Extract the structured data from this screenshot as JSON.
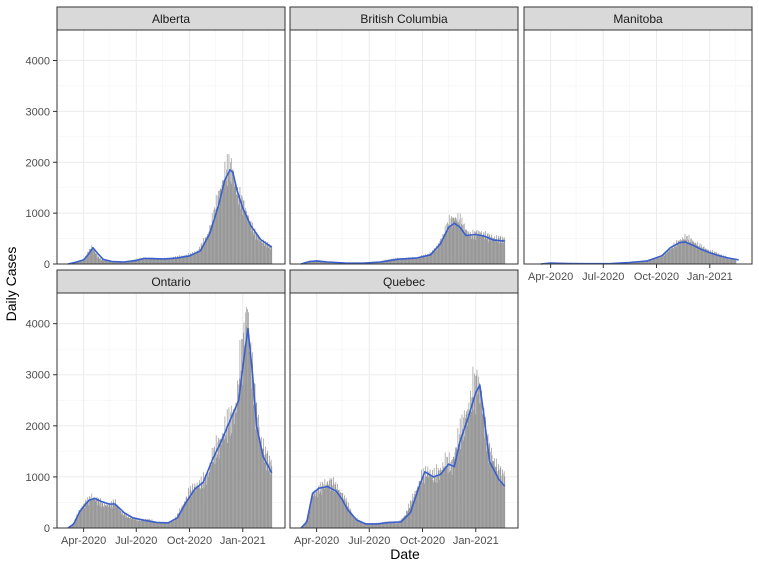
{
  "chart_data": {
    "type": "bar",
    "xlabel": "Date",
    "ylabel": "Daily Cases",
    "ylim": [
      0,
      4600
    ],
    "y_ticks": [
      0,
      1000,
      2000,
      3000,
      4000
    ],
    "xlim": [
      "2020-02-15",
      "2021-03-15"
    ],
    "x_ticks": [
      {
        "date": "2020-04-01",
        "label": "Apr-2020"
      },
      {
        "date": "2020-07-01",
        "label": "Jul-2020"
      },
      {
        "date": "2020-10-01",
        "label": "Oct-2020"
      },
      {
        "date": "2021-01-01",
        "label": "Jan-2021"
      }
    ],
    "grid": true,
    "colors": {
      "bars": "#999999",
      "smooth": "#3a5fcd",
      "strip": "#d9d9d9",
      "panel_border": "#333333",
      "grid": "#ebebeb"
    },
    "panels": [
      {
        "name": "Alberta",
        "bars": [
          [
            "2020-03-05",
            0
          ],
          [
            "2020-03-20",
            50
          ],
          [
            "2020-03-31",
            80
          ],
          [
            "2020-04-05",
            150
          ],
          [
            "2020-04-10",
            250
          ],
          [
            "2020-04-15",
            330
          ],
          [
            "2020-04-20",
            250
          ],
          [
            "2020-04-25",
            150
          ],
          [
            "2020-05-01",
            90
          ],
          [
            "2020-05-15",
            50
          ],
          [
            "2020-06-01",
            40
          ],
          [
            "2020-06-15",
            50
          ],
          [
            "2020-07-01",
            90
          ],
          [
            "2020-07-15",
            120
          ],
          [
            "2020-08-01",
            110
          ],
          [
            "2020-08-15",
            100
          ],
          [
            "2020-09-01",
            120
          ],
          [
            "2020-09-15",
            150
          ],
          [
            "2020-10-01",
            180
          ],
          [
            "2020-10-15",
            250
          ],
          [
            "2020-11-01",
            550
          ],
          [
            "2020-11-10",
            900
          ],
          [
            "2020-11-20",
            1300
          ],
          [
            "2020-12-01",
            1750
          ],
          [
            "2020-12-05",
            1850
          ],
          [
            "2020-12-10",
            1900
          ],
          [
            "2020-12-15",
            1800
          ],
          [
            "2020-12-20",
            1500
          ],
          [
            "2020-12-25",
            1300
          ],
          [
            "2021-01-01",
            1200
          ],
          [
            "2021-01-10",
            900
          ],
          [
            "2021-01-20",
            650
          ],
          [
            "2021-02-01",
            450
          ],
          [
            "2021-02-10",
            400
          ],
          [
            "2021-02-20",
            330
          ]
        ],
        "smooth": [
          [
            "2020-03-05",
            0
          ],
          [
            "2020-03-20",
            40
          ],
          [
            "2020-04-01",
            80
          ],
          [
            "2020-04-10",
            200
          ],
          [
            "2020-04-17",
            320
          ],
          [
            "2020-04-25",
            210
          ],
          [
            "2020-05-05",
            90
          ],
          [
            "2020-05-20",
            50
          ],
          [
            "2020-06-10",
            40
          ],
          [
            "2020-07-01",
            70
          ],
          [
            "2020-07-15",
            110
          ],
          [
            "2020-08-01",
            105
          ],
          [
            "2020-08-20",
            100
          ],
          [
            "2020-09-10",
            120
          ],
          [
            "2020-10-01",
            160
          ],
          [
            "2020-10-20",
            260
          ],
          [
            "2020-11-05",
            600
          ],
          [
            "2020-11-20",
            1150
          ],
          [
            "2020-12-01",
            1650
          ],
          [
            "2020-12-10",
            1850
          ],
          [
            "2020-12-15",
            1800
          ],
          [
            "2020-12-22",
            1450
          ],
          [
            "2021-01-01",
            1100
          ],
          [
            "2021-01-15",
            750
          ],
          [
            "2021-02-01",
            480
          ],
          [
            "2021-02-20",
            330
          ]
        ]
      },
      {
        "name": "British Columbia",
        "bars": [
          [
            "2020-03-05",
            0
          ],
          [
            "2020-03-20",
            60
          ],
          [
            "2020-04-01",
            70
          ],
          [
            "2020-04-15",
            50
          ],
          [
            "2020-05-01",
            30
          ],
          [
            "2020-06-01",
            15
          ],
          [
            "2020-07-01",
            25
          ],
          [
            "2020-07-20",
            50
          ],
          [
            "2020-08-10",
            100
          ],
          [
            "2020-09-01",
            110
          ],
          [
            "2020-09-20",
            120
          ],
          [
            "2020-10-10",
            180
          ],
          [
            "2020-10-25",
            300
          ],
          [
            "2020-11-05",
            550
          ],
          [
            "2020-11-15",
            800
          ],
          [
            "2020-11-25",
            900
          ],
          [
            "2020-12-05",
            850
          ],
          [
            "2020-12-15",
            650
          ],
          [
            "2020-12-25",
            550
          ],
          [
            "2021-01-05",
            620
          ],
          [
            "2021-01-20",
            550
          ],
          [
            "2021-02-05",
            500
          ],
          [
            "2021-02-20",
            480
          ]
        ],
        "smooth": [
          [
            "2020-03-05",
            0
          ],
          [
            "2020-03-20",
            50
          ],
          [
            "2020-04-01",
            60
          ],
          [
            "2020-04-20",
            40
          ],
          [
            "2020-05-20",
            20
          ],
          [
            "2020-06-20",
            15
          ],
          [
            "2020-07-20",
            40
          ],
          [
            "2020-08-20",
            95
          ],
          [
            "2020-09-20",
            115
          ],
          [
            "2020-10-15",
            180
          ],
          [
            "2020-11-01",
            400
          ],
          [
            "2020-11-15",
            720
          ],
          [
            "2020-11-25",
            800
          ],
          [
            "2020-12-05",
            720
          ],
          [
            "2020-12-15",
            560
          ],
          [
            "2021-01-01",
            580
          ],
          [
            "2021-01-15",
            550
          ],
          [
            "2021-02-01",
            470
          ],
          [
            "2021-02-20",
            450
          ]
        ]
      },
      {
        "name": "Manitoba",
        "bars": [
          [
            "2020-03-15",
            0
          ],
          [
            "2020-04-01",
            30
          ],
          [
            "2020-05-01",
            10
          ],
          [
            "2020-06-01",
            5
          ],
          [
            "2020-07-01",
            5
          ],
          [
            "2020-08-01",
            20
          ],
          [
            "2020-09-01",
            40
          ],
          [
            "2020-09-20",
            80
          ],
          [
            "2020-10-10",
            150
          ],
          [
            "2020-10-25",
            300
          ],
          [
            "2020-11-10",
            450
          ],
          [
            "2020-11-20",
            520
          ],
          [
            "2020-12-01",
            450
          ],
          [
            "2020-12-15",
            350
          ],
          [
            "2021-01-01",
            250
          ],
          [
            "2021-01-15",
            200
          ],
          [
            "2021-02-01",
            120
          ],
          [
            "2021-02-15",
            80
          ]
        ],
        "smooth": [
          [
            "2020-03-15",
            0
          ],
          [
            "2020-04-01",
            20
          ],
          [
            "2020-05-01",
            10
          ],
          [
            "2020-06-01",
            5
          ],
          [
            "2020-07-15",
            10
          ],
          [
            "2020-08-15",
            30
          ],
          [
            "2020-09-15",
            60
          ],
          [
            "2020-10-10",
            160
          ],
          [
            "2020-10-25",
            320
          ],
          [
            "2020-11-10",
            420
          ],
          [
            "2020-11-20",
            430
          ],
          [
            "2020-12-01",
            380
          ],
          [
            "2020-12-15",
            300
          ],
          [
            "2021-01-01",
            220
          ],
          [
            "2021-01-15",
            170
          ],
          [
            "2021-02-01",
            120
          ],
          [
            "2021-02-20",
            80
          ]
        ]
      },
      {
        "name": "Ontario",
        "bars": [
          [
            "2020-03-05",
            0
          ],
          [
            "2020-03-15",
            100
          ],
          [
            "2020-03-25",
            350
          ],
          [
            "2020-04-05",
            500
          ],
          [
            "2020-04-15",
            600
          ],
          [
            "2020-04-25",
            550
          ],
          [
            "2020-05-05",
            450
          ],
          [
            "2020-05-15",
            450
          ],
          [
            "2020-05-25",
            500
          ],
          [
            "2020-06-05",
            300
          ],
          [
            "2020-06-20",
            200
          ],
          [
            "2020-07-05",
            150
          ],
          [
            "2020-07-20",
            170
          ],
          [
            "2020-08-05",
            110
          ],
          [
            "2020-08-20",
            100
          ],
          [
            "2020-09-05",
            150
          ],
          [
            "2020-09-20",
            450
          ],
          [
            "2020-10-01",
            700
          ],
          [
            "2020-10-10",
            800
          ],
          [
            "2020-10-20",
            850
          ],
          [
            "2020-11-01",
            1000
          ],
          [
            "2020-11-10",
            1400
          ],
          [
            "2020-11-20",
            1600
          ],
          [
            "2020-12-01",
            1900
          ],
          [
            "2020-12-10",
            2100
          ],
          [
            "2020-12-20",
            2300
          ],
          [
            "2020-12-28",
            3200
          ],
          [
            "2021-01-05",
            3800
          ],
          [
            "2021-01-08",
            4300
          ],
          [
            "2021-01-15",
            3300
          ],
          [
            "2021-01-22",
            2500
          ],
          [
            "2021-02-01",
            1700
          ],
          [
            "2021-02-10",
            1400
          ],
          [
            "2021-02-20",
            1200
          ]
        ],
        "smooth": [
          [
            "2020-03-05",
            0
          ],
          [
            "2020-03-15",
            80
          ],
          [
            "2020-03-25",
            320
          ],
          [
            "2020-04-10",
            540
          ],
          [
            "2020-04-20",
            580
          ],
          [
            "2020-05-01",
            520
          ],
          [
            "2020-05-15",
            470
          ],
          [
            "2020-05-25",
            470
          ],
          [
            "2020-06-10",
            300
          ],
          [
            "2020-06-25",
            200
          ],
          [
            "2020-07-15",
            150
          ],
          [
            "2020-08-05",
            110
          ],
          [
            "2020-08-25",
            100
          ],
          [
            "2020-09-10",
            200
          ],
          [
            "2020-09-25",
            500
          ],
          [
            "2020-10-10",
            760
          ],
          [
            "2020-10-25",
            900
          ],
          [
            "2020-11-10",
            1350
          ],
          [
            "2020-11-25",
            1700
          ],
          [
            "2020-12-10",
            2100
          ],
          [
            "2020-12-25",
            2500
          ],
          [
            "2021-01-05",
            3500
          ],
          [
            "2021-01-10",
            3900
          ],
          [
            "2021-01-18",
            3000
          ],
          [
            "2021-01-25",
            2000
          ],
          [
            "2021-02-05",
            1400
          ],
          [
            "2021-02-20",
            1080
          ]
        ]
      },
      {
        "name": "Quebec",
        "bars": [
          [
            "2020-03-05",
            0
          ],
          [
            "2020-03-15",
            150
          ],
          [
            "2020-03-25",
            650
          ],
          [
            "2020-04-05",
            750
          ],
          [
            "2020-04-15",
            850
          ],
          [
            "2020-04-25",
            900
          ],
          [
            "2020-05-05",
            800
          ],
          [
            "2020-05-15",
            650
          ],
          [
            "2020-05-25",
            450
          ],
          [
            "2020-06-05",
            200
          ],
          [
            "2020-06-20",
            100
          ],
          [
            "2020-07-05",
            80
          ],
          [
            "2020-07-20",
            100
          ],
          [
            "2020-08-05",
            120
          ],
          [
            "2020-08-20",
            100
          ],
          [
            "2020-09-01",
            250
          ],
          [
            "2020-09-15",
            600
          ],
          [
            "2020-10-01",
            1000
          ],
          [
            "2020-10-10",
            1100
          ],
          [
            "2020-10-20",
            1000
          ],
          [
            "2020-11-01",
            1100
          ],
          [
            "2020-11-10",
            1300
          ],
          [
            "2020-11-20",
            1200
          ],
          [
            "2020-12-01",
            1700
          ],
          [
            "2020-12-10",
            2000
          ],
          [
            "2020-12-20",
            2300
          ],
          [
            "2020-12-28",
            2700
          ],
          [
            "2021-01-05",
            2850
          ],
          [
            "2021-01-12",
            2400
          ],
          [
            "2021-01-20",
            1700
          ],
          [
            "2021-02-01",
            1300
          ],
          [
            "2021-02-10",
            1100
          ],
          [
            "2021-02-20",
            1000
          ]
        ],
        "smooth": [
          [
            "2020-03-05",
            0
          ],
          [
            "2020-03-15",
            120
          ],
          [
            "2020-03-25",
            680
          ],
          [
            "2020-04-05",
            780
          ],
          [
            "2020-04-20",
            810
          ],
          [
            "2020-05-05",
            720
          ],
          [
            "2020-05-15",
            560
          ],
          [
            "2020-05-25",
            350
          ],
          [
            "2020-06-10",
            150
          ],
          [
            "2020-06-25",
            80
          ],
          [
            "2020-07-15",
            80
          ],
          [
            "2020-08-05",
            110
          ],
          [
            "2020-08-25",
            120
          ],
          [
            "2020-09-10",
            300
          ],
          [
            "2020-09-25",
            800
          ],
          [
            "2020-10-05",
            1100
          ],
          [
            "2020-10-20",
            1000
          ],
          [
            "2020-11-01",
            1050
          ],
          [
            "2020-11-15",
            1250
          ],
          [
            "2020-11-25",
            1200
          ],
          [
            "2020-12-05",
            1700
          ],
          [
            "2020-12-20",
            2200
          ],
          [
            "2021-01-01",
            2650
          ],
          [
            "2021-01-08",
            2800
          ],
          [
            "2021-01-15",
            2200
          ],
          [
            "2021-01-25",
            1300
          ],
          [
            "2021-02-10",
            950
          ],
          [
            "2021-02-20",
            820
          ]
        ]
      }
    ]
  }
}
